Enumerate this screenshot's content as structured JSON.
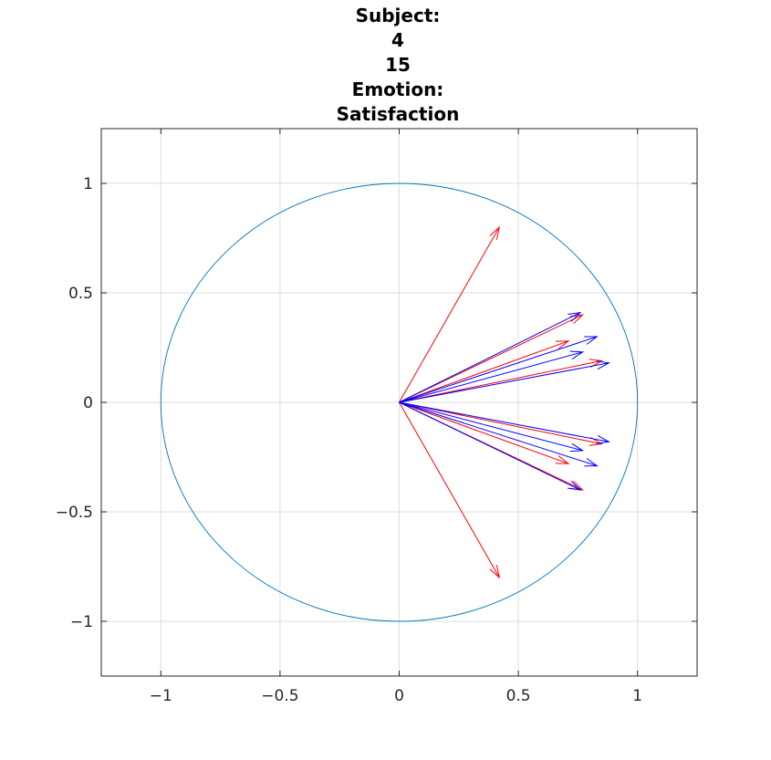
{
  "chart_data": {
    "type": "line",
    "title_lines": [
      "Subject:",
      "4",
      "15",
      "Emotion:",
      "Satisfaction"
    ],
    "xlabel": "",
    "ylabel": "",
    "xlim": [
      -1.25,
      1.25
    ],
    "ylim": [
      -1.25,
      1.25
    ],
    "xticks": [
      -1,
      -0.5,
      0,
      0.5,
      1
    ],
    "xtick_labels": [
      "−1",
      "−0.5",
      "0",
      "0.5",
      "1"
    ],
    "yticks": [
      1,
      0.5,
      0,
      -0.5,
      -1
    ],
    "ytick_labels": [
      "1",
      "0.5",
      "0",
      "−0.5",
      "−1"
    ],
    "grid": true,
    "series": [
      {
        "kind": "circle",
        "color": "#0072bd",
        "center": [
          0,
          0
        ],
        "radius": 1
      },
      {
        "kind": "arrows",
        "color": "#ff0000",
        "origin": [
          0,
          0
        ],
        "tips": [
          [
            0.42,
            0.8
          ],
          [
            0.77,
            0.4
          ],
          [
            0.71,
            0.28
          ],
          [
            0.85,
            0.19
          ],
          [
            0.85,
            -0.19
          ],
          [
            0.71,
            -0.28
          ],
          [
            0.77,
            -0.4
          ],
          [
            0.42,
            -0.8
          ]
        ]
      },
      {
        "kind": "arrows",
        "color": "#0000ff",
        "origin": [
          0,
          0
        ],
        "tips": [
          [
            0.76,
            0.41
          ],
          [
            0.83,
            0.3
          ],
          [
            0.77,
            0.23
          ],
          [
            0.88,
            0.18
          ],
          [
            0.88,
            -0.18
          ],
          [
            0.77,
            -0.22
          ],
          [
            0.83,
            -0.29
          ],
          [
            0.76,
            -0.4
          ]
        ]
      }
    ]
  }
}
